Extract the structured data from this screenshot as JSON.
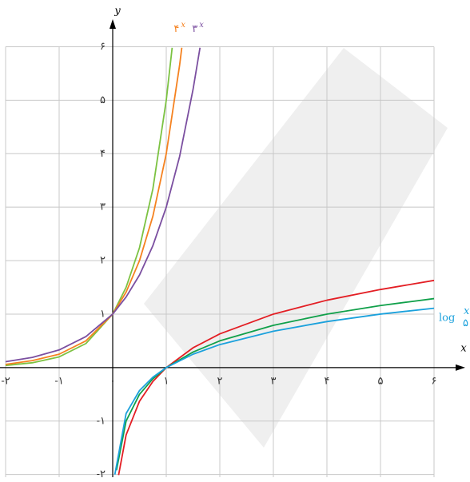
{
  "chart_data": {
    "type": "line",
    "x_label": "x",
    "y_label": "y",
    "xlim": [
      -2,
      6
    ],
    "ylim": [
      -2.05,
      6.5
    ],
    "grid": true,
    "xticks": [
      {
        "value": -2,
        "label": "-۲"
      },
      {
        "value": -1,
        "label": "-۱"
      },
      {
        "value": 0,
        "label": "۰"
      },
      {
        "value": 1,
        "label": "۱"
      },
      {
        "value": 2,
        "label": "۲"
      },
      {
        "value": 3,
        "label": "۳"
      },
      {
        "value": 4,
        "label": "۴"
      },
      {
        "value": 5,
        "label": "۵"
      },
      {
        "value": 6,
        "label": "۶"
      }
    ],
    "yticks": [
      {
        "value": -2,
        "label": "-۲"
      },
      {
        "value": -1,
        "label": "-۱"
      },
      {
        "value": 1,
        "label": "۱"
      },
      {
        "value": 2,
        "label": "۲"
      },
      {
        "value": 3,
        "label": "۳"
      },
      {
        "value": 4,
        "label": "۴"
      },
      {
        "value": 5,
        "label": "۵"
      },
      {
        "value": 6,
        "label": "۶"
      }
    ],
    "series": [
      {
        "color": "#7cc242",
        "x": [
          -2,
          -1.5,
          -1,
          -0.5,
          0,
          0.25,
          0.5,
          0.75,
          1,
          1.11
        ],
        "values": [
          0.04,
          0.09,
          0.2,
          0.45,
          1,
          1.5,
          2.24,
          3.34,
          5,
          5.98
        ]
      },
      {
        "color": "#f58220",
        "label": {
          "base": "۴",
          "exp": "x"
        },
        "x": [
          -2,
          -1.5,
          -1,
          -0.5,
          0,
          0.25,
          0.5,
          0.75,
          1,
          1.25,
          1.29
        ],
        "values": [
          0.06,
          0.13,
          0.25,
          0.5,
          1,
          1.41,
          2,
          2.83,
          4,
          5.66,
          5.98
        ]
      },
      {
        "color": "#7b4fa0",
        "label": {
          "base": "۳",
          "exp": "x"
        },
        "x": [
          -2,
          -1.5,
          -1,
          -0.5,
          0,
          0.25,
          0.5,
          0.75,
          1,
          1.25,
          1.5,
          1.63
        ],
        "values": [
          0.11,
          0.19,
          0.33,
          0.58,
          1,
          1.32,
          1.73,
          2.28,
          3,
          3.95,
          5.2,
          5.98
        ]
      },
      {
        "color": "#e31e24",
        "x": [
          0.11,
          0.25,
          0.5,
          0.75,
          1,
          1.5,
          2,
          3,
          4,
          5,
          6
        ],
        "values": [
          -2.01,
          -1.26,
          -0.63,
          -0.26,
          0,
          0.37,
          0.63,
          1,
          1.26,
          1.46,
          1.63
        ]
      },
      {
        "color": "#10a04a",
        "x": [
          0.07,
          0.25,
          0.5,
          0.75,
          1,
          1.5,
          2,
          3,
          4,
          5,
          6
        ],
        "values": [
          -1.92,
          -1,
          -0.5,
          -0.21,
          0,
          0.29,
          0.5,
          0.79,
          1,
          1.16,
          1.29
        ]
      },
      {
        "color": "#1ba1dc",
        "label": {
          "base": "log",
          "sub": "۵",
          "exp": "x"
        },
        "x": [
          0.04,
          0.25,
          0.5,
          0.75,
          1,
          1.5,
          2,
          3,
          4,
          5,
          6
        ],
        "values": [
          -2,
          -0.86,
          -0.43,
          -0.18,
          0,
          0.25,
          0.43,
          0.68,
          0.86,
          1,
          1.11
        ]
      }
    ]
  }
}
